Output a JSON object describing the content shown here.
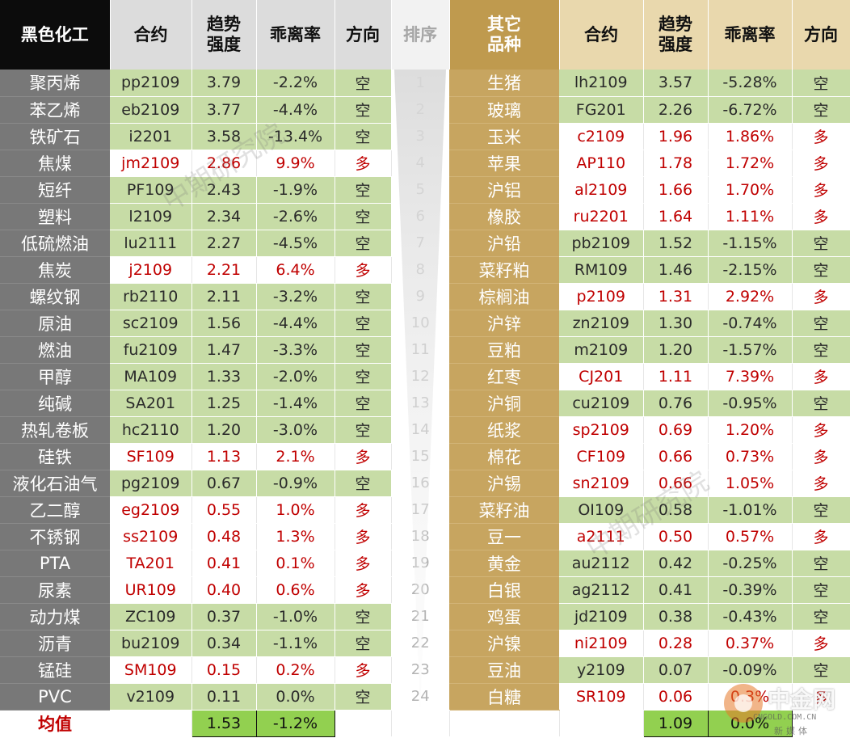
{
  "header": {
    "left_group": "黑色化工",
    "contract": "合约",
    "trend_strength": "趋势\n强度",
    "deviation": "乖离率",
    "direction": "方向",
    "rank": "排序",
    "right_group": "其它\n品种"
  },
  "colors": {
    "kong": "#c7dca6",
    "duo_text": "#c00000",
    "avg_fill": "#92d050",
    "left_header": "#0c0c0c",
    "right_header": "#bf9a4e"
  },
  "rows": [
    {
      "rank": "1",
      "l": {
        "name": "聚丙烯",
        "contract": "pp2109",
        "strength": "3.79",
        "deviation": "-2.2%",
        "direction": "空"
      },
      "r": {
        "name": "生猪",
        "contract": "lh2109",
        "strength": "3.57",
        "deviation": "-5.28%",
        "direction": "空"
      }
    },
    {
      "rank": "2",
      "l": {
        "name": "苯乙烯",
        "contract": "eb2109",
        "strength": "3.77",
        "deviation": "-4.4%",
        "direction": "空"
      },
      "r": {
        "name": "玻璃",
        "contract": "FG201",
        "strength": "2.26",
        "deviation": "-6.72%",
        "direction": "空"
      }
    },
    {
      "rank": "3",
      "l": {
        "name": "铁矿石",
        "contract": "i2201",
        "strength": "3.58",
        "deviation": "-13.4%",
        "direction": "空"
      },
      "r": {
        "name": "玉米",
        "contract": "c2109",
        "strength": "1.96",
        "deviation": "1.86%",
        "direction": "多"
      }
    },
    {
      "rank": "4",
      "l": {
        "name": "焦煤",
        "contract": "jm2109",
        "strength": "2.86",
        "deviation": "9.9%",
        "direction": "多"
      },
      "r": {
        "name": "苹果",
        "contract": "AP110",
        "strength": "1.78",
        "deviation": "1.72%",
        "direction": "多"
      }
    },
    {
      "rank": "5",
      "l": {
        "name": "短纤",
        "contract": "PF109",
        "strength": "2.43",
        "deviation": "-1.9%",
        "direction": "空"
      },
      "r": {
        "name": "沪铝",
        "contract": "al2109",
        "strength": "1.66",
        "deviation": "1.70%",
        "direction": "多"
      }
    },
    {
      "rank": "6",
      "l": {
        "name": "塑料",
        "contract": "l2109",
        "strength": "2.34",
        "deviation": "-2.6%",
        "direction": "空"
      },
      "r": {
        "name": "橡胶",
        "contract": "ru2201",
        "strength": "1.64",
        "deviation": "1.11%",
        "direction": "多"
      }
    },
    {
      "rank": "7",
      "l": {
        "name": "低硫燃油",
        "contract": "lu2111",
        "strength": "2.27",
        "deviation": "-4.5%",
        "direction": "空"
      },
      "r": {
        "name": "沪铅",
        "contract": "pb2109",
        "strength": "1.52",
        "deviation": "-1.15%",
        "direction": "空"
      }
    },
    {
      "rank": "8",
      "l": {
        "name": "焦炭",
        "contract": "j2109",
        "strength": "2.21",
        "deviation": "6.4%",
        "direction": "多"
      },
      "r": {
        "name": "菜籽粕",
        "contract": "RM109",
        "strength": "1.46",
        "deviation": "-2.15%",
        "direction": "空"
      }
    },
    {
      "rank": "9",
      "l": {
        "name": "螺纹钢",
        "contract": "rb2110",
        "strength": "2.11",
        "deviation": "-3.2%",
        "direction": "空"
      },
      "r": {
        "name": "棕榈油",
        "contract": "p2109",
        "strength": "1.31",
        "deviation": "2.92%",
        "direction": "多"
      }
    },
    {
      "rank": "10",
      "l": {
        "name": "原油",
        "contract": "sc2109",
        "strength": "1.56",
        "deviation": "-4.4%",
        "direction": "空"
      },
      "r": {
        "name": "沪锌",
        "contract": "zn2109",
        "strength": "1.30",
        "deviation": "-0.74%",
        "direction": "空"
      }
    },
    {
      "rank": "11",
      "l": {
        "name": "燃油",
        "contract": "fu2109",
        "strength": "1.47",
        "deviation": "-3.3%",
        "direction": "空"
      },
      "r": {
        "name": "豆粕",
        "contract": "m2109",
        "strength": "1.20",
        "deviation": "-1.57%",
        "direction": "空"
      }
    },
    {
      "rank": "12",
      "l": {
        "name": "甲醇",
        "contract": "MA109",
        "strength": "1.33",
        "deviation": "-2.0%",
        "direction": "空"
      },
      "r": {
        "name": "红枣",
        "contract": "CJ201",
        "strength": "1.11",
        "deviation": "7.39%",
        "direction": "多"
      }
    },
    {
      "rank": "13",
      "l": {
        "name": "纯碱",
        "contract": "SA201",
        "strength": "1.25",
        "deviation": "-1.4%",
        "direction": "空"
      },
      "r": {
        "name": "沪铜",
        "contract": "cu2109",
        "strength": "0.76",
        "deviation": "-0.95%",
        "direction": "空"
      }
    },
    {
      "rank": "14",
      "l": {
        "name": "热轧卷板",
        "contract": "hc2110",
        "strength": "1.20",
        "deviation": "-3.0%",
        "direction": "空"
      },
      "r": {
        "name": "纸浆",
        "contract": "sp2109",
        "strength": "0.69",
        "deviation": "1.20%",
        "direction": "多"
      }
    },
    {
      "rank": "15",
      "l": {
        "name": "硅铁",
        "contract": "SF109",
        "strength": "1.13",
        "deviation": "2.1%",
        "direction": "多"
      },
      "r": {
        "name": "棉花",
        "contract": "CF109",
        "strength": "0.66",
        "deviation": "0.73%",
        "direction": "多"
      }
    },
    {
      "rank": "16",
      "l": {
        "name": "液化石油气",
        "contract": "pg2109",
        "strength": "0.67",
        "deviation": "-0.9%",
        "direction": "空"
      },
      "r": {
        "name": "沪锡",
        "contract": "sn2109",
        "strength": "0.66",
        "deviation": "1.05%",
        "direction": "多"
      }
    },
    {
      "rank": "17",
      "l": {
        "name": "乙二醇",
        "contract": "eg2109",
        "strength": "0.55",
        "deviation": "1.0%",
        "direction": "多"
      },
      "r": {
        "name": "菜籽油",
        "contract": "OI109",
        "strength": "0.58",
        "deviation": "-1.01%",
        "direction": "空"
      }
    },
    {
      "rank": "18",
      "l": {
        "name": "不锈钢",
        "contract": "ss2109",
        "strength": "0.48",
        "deviation": "1.3%",
        "direction": "多"
      },
      "r": {
        "name": "豆一",
        "contract": "a2111",
        "strength": "0.50",
        "deviation": "0.57%",
        "direction": "多"
      }
    },
    {
      "rank": "19",
      "l": {
        "name": "PTA",
        "contract": "TA201",
        "strength": "0.41",
        "deviation": "0.1%",
        "direction": "多"
      },
      "r": {
        "name": "黄金",
        "contract": "au2112",
        "strength": "0.42",
        "deviation": "-0.25%",
        "direction": "空"
      }
    },
    {
      "rank": "20",
      "l": {
        "name": "尿素",
        "contract": "UR109",
        "strength": "0.40",
        "deviation": "0.6%",
        "direction": "多"
      },
      "r": {
        "name": "白银",
        "contract": "ag2112",
        "strength": "0.41",
        "deviation": "-0.39%",
        "direction": "空"
      }
    },
    {
      "rank": "21",
      "l": {
        "name": "动力煤",
        "contract": "ZC109",
        "strength": "0.37",
        "deviation": "-1.0%",
        "direction": "空"
      },
      "r": {
        "name": "鸡蛋",
        "contract": "jd2109",
        "strength": "0.38",
        "deviation": "-0.43%",
        "direction": "空"
      }
    },
    {
      "rank": "22",
      "l": {
        "name": "沥青",
        "contract": "bu2109",
        "strength": "0.34",
        "deviation": "-1.1%",
        "direction": "空"
      },
      "r": {
        "name": "沪镍",
        "contract": "ni2109",
        "strength": "0.28",
        "deviation": "0.37%",
        "direction": "多"
      }
    },
    {
      "rank": "23",
      "l": {
        "name": "锰硅",
        "contract": "SM109",
        "strength": "0.15",
        "deviation": "0.2%",
        "direction": "多"
      },
      "r": {
        "name": "豆油",
        "contract": "y2109",
        "strength": "0.07",
        "deviation": "-0.09%",
        "direction": "空"
      }
    },
    {
      "rank": "24",
      "l": {
        "name": "PVC",
        "contract": "v2109",
        "strength": "0.11",
        "deviation": "0.0%",
        "direction": "空"
      },
      "r": {
        "name": "白糖",
        "contract": "SR109",
        "strength": "0.06",
        "deviation": "0.3%",
        "direction": "多"
      }
    }
  ],
  "average": {
    "label": "均值",
    "left_strength": "1.53",
    "left_deviation": "-1.2%",
    "right_strength": "1.09",
    "right_deviation": "0.0%"
  },
  "watermark": "中期研究院",
  "logo": {
    "icon": "zhongjin-logo-disc-icon",
    "brand": "中金网",
    "domain": "CNGOLD.COM.CN",
    "sub": "新媒体"
  }
}
